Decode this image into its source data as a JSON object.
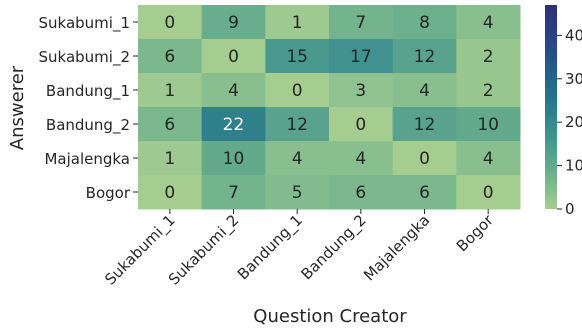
{
  "chart_data": {
    "type": "heatmap",
    "title": "",
    "xlabel": "Question Creator",
    "ylabel": "Answerer",
    "x_categories": [
      "Sukabumi_1",
      "Sukabumi_2",
      "Bandung_1",
      "Bandung_2",
      "Majalengka",
      "Bogor"
    ],
    "y_categories": [
      "Sukabumi_1",
      "Sukabumi_2",
      "Bandung_1",
      "Bandung_2",
      "Majalengka",
      "Bogor"
    ],
    "values": [
      [
        0,
        9,
        1,
        7,
        8,
        4
      ],
      [
        6,
        0,
        15,
        17,
        12,
        2
      ],
      [
        1,
        4,
        0,
        3,
        4,
        2
      ],
      [
        6,
        22,
        12,
        0,
        12,
        10
      ],
      [
        1,
        10,
        4,
        4,
        0,
        4
      ],
      [
        0,
        7,
        5,
        6,
        6,
        0
      ]
    ],
    "colorbar": {
      "range": [
        0,
        47
      ],
      "ticks": [
        "0",
        "10",
        "20",
        "30",
        "40"
      ],
      "colormap": "crest",
      "colors": [
        "#a5cd90",
        "#6eb18d",
        "#46978e",
        "#2b7b8c",
        "#245f88",
        "#2a4384",
        "#2c3172"
      ]
    },
    "grid": false,
    "legend": "colorbar-right"
  }
}
